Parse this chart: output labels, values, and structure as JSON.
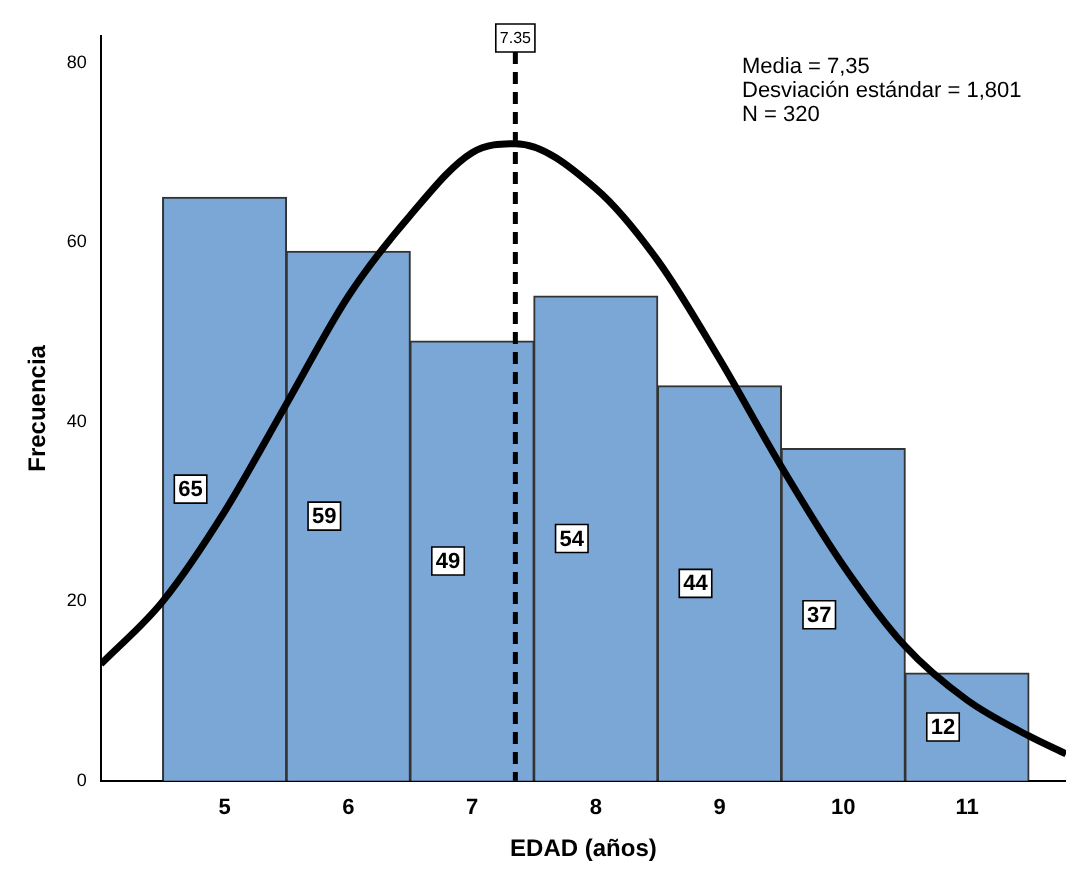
{
  "chart_data": {
    "type": "histogram",
    "xlabel": "EDAD (años)",
    "ylabel": "Frecuencia",
    "bins": [
      4.5,
      5.5,
      6.5,
      7.5,
      8.5,
      9.5,
      10.5,
      11.5
    ],
    "values": [
      65,
      59,
      49,
      54,
      44,
      37,
      12
    ],
    "color": "#7ba7d7",
    "value_labels": [
      "65",
      "59",
      "49",
      "54",
      "44",
      "37",
      "12"
    ],
    "series": [
      {
        "type": "line",
        "color": "#000000",
        "x": [
          4,
          4.5,
          5,
          5.5,
          6,
          6.5,
          7,
          7.35,
          8,
          8.5,
          9,
          9.5,
          10,
          10.5,
          11,
          11.5,
          11.8
        ],
        "values": [
          13,
          20,
          30,
          42,
          54,
          63,
          70,
          71,
          66,
          58,
          47,
          35,
          24,
          15,
          9,
          5,
          3
        ]
      }
    ],
    "ref_lines": [
      {
        "axis": "x",
        "value": 7.35,
        "label": "7.35",
        "color": "#000000",
        "line_style": "dashed"
      }
    ],
    "annotations": [
      "Media = 7,35",
      "Desviación estándar = 1,801",
      "N = 320"
    ],
    "xlim": [
      4,
      11.8
    ],
    "xticks": [
      5,
      6,
      7,
      8,
      9,
      10,
      11
    ],
    "ylim": [
      0,
      83
    ],
    "yticks": [
      0,
      20,
      40,
      60,
      80
    ],
    "grid": false,
    "legend": false
  }
}
